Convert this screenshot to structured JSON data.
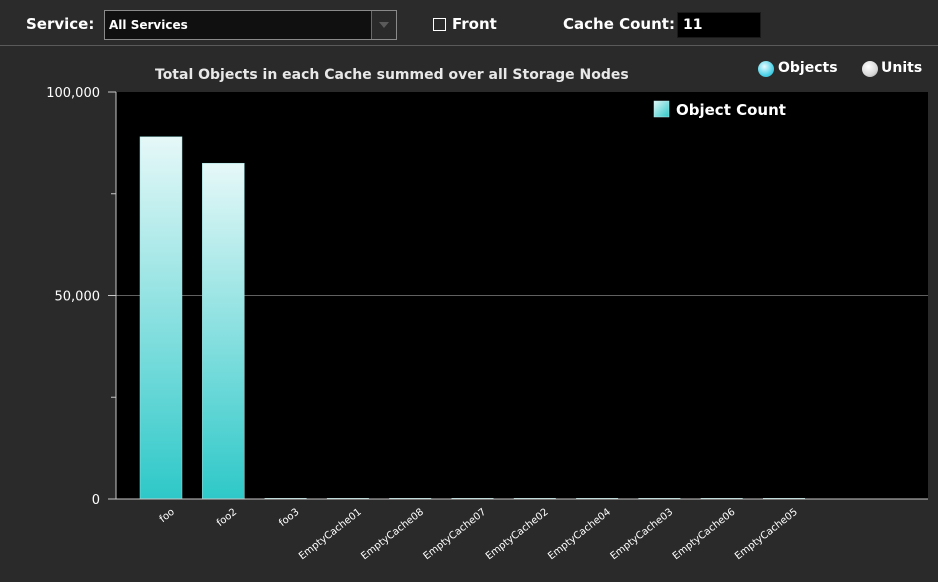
{
  "toolbar": {
    "service_label": "Service:",
    "service_value": "All Services",
    "front_label": "Front",
    "front_checked": false,
    "cache_count_label": "Cache Count:",
    "cache_count_value": "11"
  },
  "mode_toggle": {
    "objects_label": "Objects",
    "units_label": "Units",
    "selected": "Objects"
  },
  "colors": {
    "plot_background": "#000000",
    "bar_top": "#e6f8f8",
    "bar_bottom": "#2ec8c8",
    "gridline": "#606060"
  },
  "chart_data": {
    "type": "bar",
    "title": "Total Objects in each Cache summed over all Storage Nodes",
    "xlabel": "",
    "ylabel": "",
    "ylim": [
      0,
      100000
    ],
    "yticks": [
      0,
      50000,
      100000
    ],
    "ytick_labels": [
      "0",
      "50,000",
      "100,000"
    ],
    "grid": true,
    "legend": "top-right",
    "categories": [
      "foo",
      "foo2",
      "foo3",
      "EmptyCache01",
      "EmptyCache08",
      "EmptyCache07",
      "EmptyCache02",
      "EmptyCache04",
      "EmptyCache03",
      "EmptyCache06",
      "EmptyCache05"
    ],
    "series": [
      {
        "name": "Object Count",
        "values": [
          89000,
          82500,
          0,
          0,
          0,
          0,
          0,
          0,
          0,
          0,
          0
        ]
      }
    ]
  }
}
